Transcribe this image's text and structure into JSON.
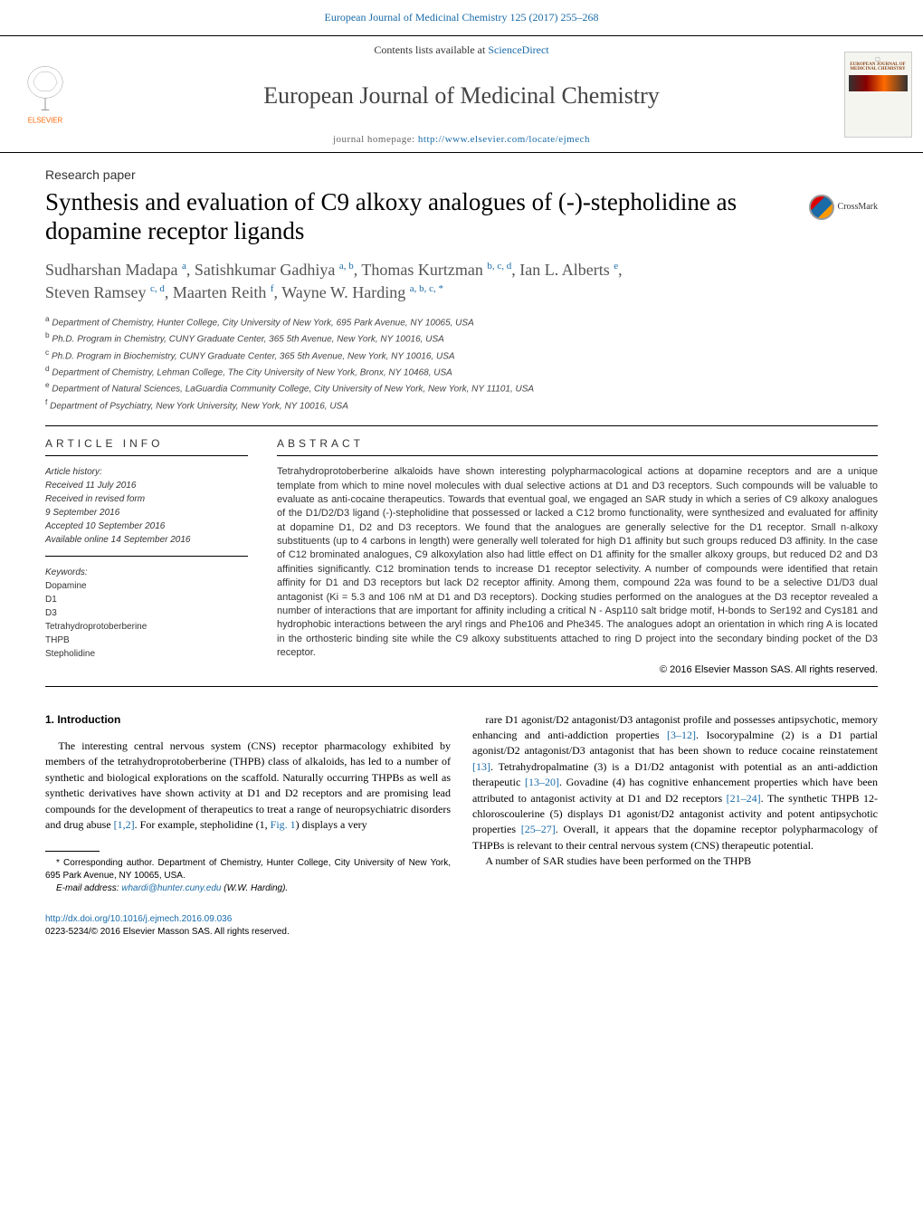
{
  "top_link": "European Journal of Medicinal Chemistry 125 (2017) 255–268",
  "header": {
    "publisher_name": "ELSEVIER",
    "contents_prefix": "Contents lists available at ",
    "contents_link": "ScienceDirect",
    "journal_title": "European Journal of Medicinal Chemistry",
    "homepage_prefix": "journal homepage: ",
    "homepage_url": "http://www.elsevier.com/locate/ejmech",
    "cover_small_title": "EUROPEAN JOURNAL OF",
    "cover_title": "MEDICINAL CHEMISTRY"
  },
  "article_type": "Research paper",
  "title": "Synthesis and evaluation of C9 alkoxy analogues of (-)-stepholidine as dopamine receptor ligands",
  "crossmark_label": "CrossMark",
  "authors_line1_html": "Sudharshan Madapa <sup>a</sup>, Satishkumar Gadhiya <sup>a, b</sup>, Thomas Kurtzman <sup>b, c, d</sup>, Ian L. Alberts <sup>e</sup>,",
  "authors_line2_html": "Steven Ramsey <sup>c, d</sup>, Maarten Reith <sup>f</sup>, Wayne W. Harding <sup>a, b, c, *</sup>",
  "affiliations": {
    "a": "Department of Chemistry, Hunter College, City University of New York, 695 Park Avenue, NY 10065, USA",
    "b": "Ph.D. Program in Chemistry, CUNY Graduate Center, 365 5th Avenue, New York, NY 10016, USA",
    "c": "Ph.D. Program in Biochemistry, CUNY Graduate Center, 365 5th Avenue, New York, NY 10016, USA",
    "d": "Department of Chemistry, Lehman College, The City University of New York, Bronx, NY 10468, USA",
    "e": "Department of Natural Sciences, LaGuardia Community College, City University of New York, New York, NY 11101, USA",
    "f": "Department of Psychiatry, New York University, New York, NY 10016, USA"
  },
  "info": {
    "heading": "ARTICLE INFO",
    "history_label": "Article history:",
    "received": "Received 11 July 2016",
    "revised": "Received in revised form",
    "revised_date": "9 September 2016",
    "accepted": "Accepted 10 September 2016",
    "online": "Available online 14 September 2016",
    "keywords_label": "Keywords:",
    "keywords": [
      "Dopamine",
      "D1",
      "D3",
      "Tetrahydroprotoberberine",
      "THPB",
      "Stepholidine"
    ]
  },
  "abstract": {
    "heading": "ABSTRACT",
    "text": "Tetrahydroprotoberberine alkaloids have shown interesting polypharmacological actions at dopamine receptors and are a unique template from which to mine novel molecules with dual selective actions at D1 and D3 receptors. Such compounds will be valuable to evaluate as anti-cocaine therapeutics. Towards that eventual goal, we engaged an SAR study in which a series of C9 alkoxy analogues of the D1/D2/D3 ligand (-)-stepholidine that possessed or lacked a C12 bromo functionality, were synthesized and evaluated for affinity at dopamine D1, D2 and D3 receptors. We found that the analogues are generally selective for the D1 receptor. Small n-alkoxy substituents (up to 4 carbons in length) were generally well tolerated for high D1 affinity but such groups reduced D3 affinity. In the case of C12 brominated analogues, C9 alkoxylation also had little effect on D1 affinity for the smaller alkoxy groups, but reduced D2 and D3 affinities significantly. C12 bromination tends to increase D1 receptor selectivity. A number of compounds were identified that retain affinity for D1 and D3 receptors but lack D2 receptor affinity. Among them, compound 22a was found to be a selective D1/D3 dual antagonist (Ki = 5.3 and 106 nM at D1 and D3 receptors). Docking studies performed on the analogues at the D3 receptor revealed a number of interactions that are important for affinity including a critical N - Asp110 salt bridge motif, H-bonds to Ser192 and Cys181 and hydrophobic interactions between the aryl rings and Phe106 and Phe345. The analogues adopt an orientation in which ring A is located in the orthosteric binding site while the C9 alkoxy substituents attached to ring D project into the secondary binding pocket of the D3 receptor.",
    "copyright": "© 2016 Elsevier Masson SAS. All rights reserved."
  },
  "introduction": {
    "heading": "1. Introduction",
    "col1_p1": "The interesting central nervous system (CNS) receptor pharmacology exhibited by members of the tetrahydroprotoberberine (THPB) class of alkaloids, has led to a number of synthetic and biological explorations on the scaffold. Naturally occurring THPBs as well as synthetic derivatives have shown activity at D1 and D2 receptors and are promising lead compounds for the development of therapeutics to treat a range of neuropsychiatric disorders and drug abuse [1,2]. For example, stepholidine (1, Fig. 1) displays a very",
    "col2_p1": "rare D1 agonist/D2 antagonist/D3 antagonist profile and possesses antipsychotic, memory enhancing and anti-addiction properties [3–12]. Isocorypalmine (2) is a D1 partial agonist/D2 antagonist/D3 antagonist that has been shown to reduce cocaine reinstatement [13]. Tetrahydropalmatine (3) is a D1/D2 antagonist with potential as an anti-addiction therapeutic [13–20]. Govadine (4) has cognitive enhancement properties which have been attributed to antagonist activity at D1 and D2 receptors [21–24]. The synthetic THPB 12-chloroscoulerine (5) displays D1 agonist/D2 antagonist activity and potent antipsychotic properties [25–27]. Overall, it appears that the dopamine receptor polypharmacology of THPBs is relevant to their central nervous system (CNS) therapeutic potential.",
    "col2_p2": "A number of SAR studies have been performed on the THPB"
  },
  "footnotes": {
    "corresponding": "* Corresponding author. Department of Chemistry, Hunter College, City University of New York, 695 Park Avenue, NY 10065, USA.",
    "email_label": "E-mail address: ",
    "email": "whardi@hunter.cuny.edu",
    "email_suffix": " (W.W. Harding)."
  },
  "bottom": {
    "doi": "http://dx.doi.org/10.1016/j.ejmech.2016.09.036",
    "issn_line": "0223-5234/© 2016 Elsevier Masson SAS. All rights reserved."
  },
  "colors": {
    "link": "#1a6ba8",
    "elsevier_orange": "#ff6600",
    "text": "#333333",
    "rule": "#000000"
  }
}
